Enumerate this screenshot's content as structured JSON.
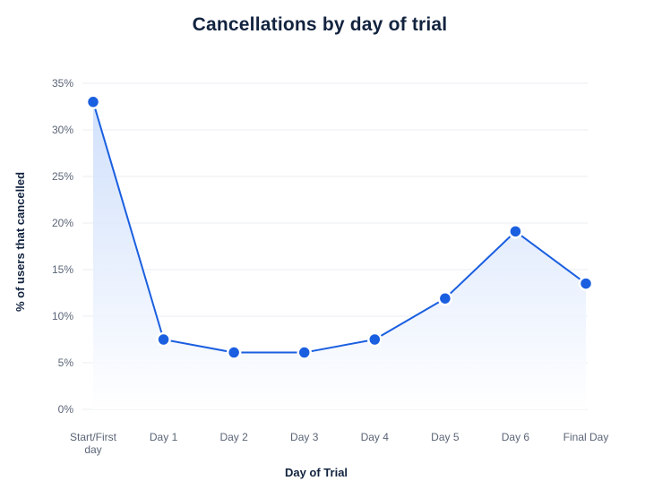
{
  "chart_data": {
    "type": "line",
    "title": "Cancellations by day of trial",
    "xlabel": "Day of Trial",
    "ylabel": "% of users that cancelled",
    "categories": [
      [
        "Start/First",
        "day"
      ],
      [
        "Day 1"
      ],
      [
        "Day 2"
      ],
      [
        "Day 3"
      ],
      [
        "Day 4"
      ],
      [
        "Day 5"
      ],
      [
        "Day 6"
      ],
      [
        "Final Day"
      ]
    ],
    "values": [
      33.0,
      7.5,
      6.1,
      6.1,
      7.5,
      11.9,
      19.1,
      13.5
    ],
    "ylim": [
      0,
      35
    ],
    "yticks": [
      0,
      5,
      10,
      15,
      20,
      25,
      30,
      35
    ],
    "ytick_labels": [
      "0%",
      "5%",
      "10%",
      "15%",
      "20%",
      "25%",
      "30%",
      "35%"
    ],
    "grid": true,
    "legend": "none",
    "colors": {
      "line": "#1a5fe0",
      "marker": "#1a5fe0",
      "marker_outline": "#ffffff",
      "fill_top": "#c9dbfb",
      "fill_bottom": "#ffffff"
    }
  }
}
